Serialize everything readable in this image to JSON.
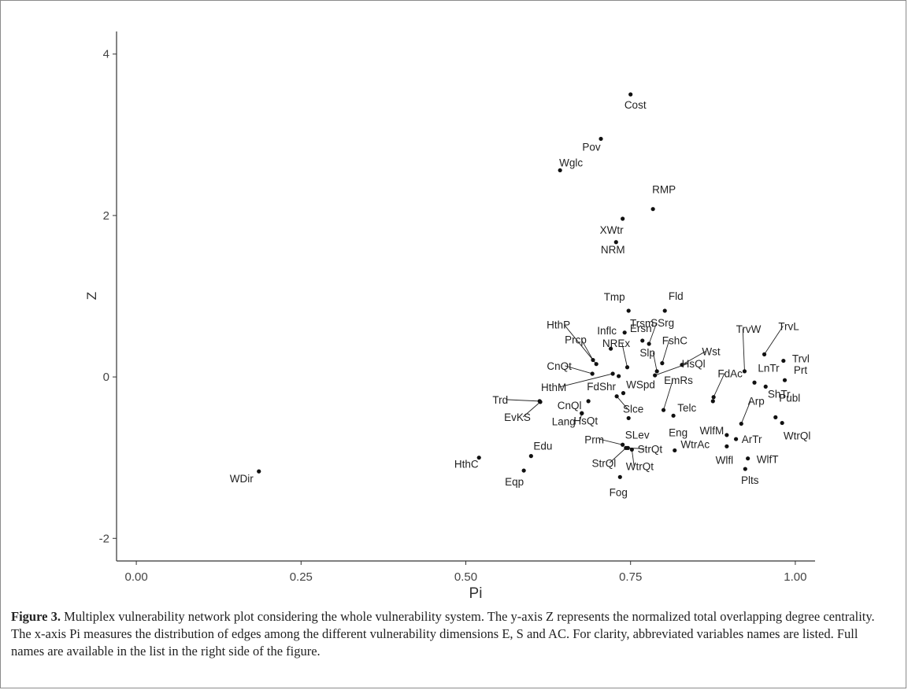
{
  "chart_data": {
    "type": "scatter",
    "xlabel": "Pi",
    "ylabel": "Z",
    "xlim": [
      -0.03,
      1.03
    ],
    "ylim": [
      -2.28,
      4.28
    ],
    "xticks": [
      "0.00",
      "0.25",
      "0.50",
      "0.75",
      "1.00"
    ],
    "xtick_values": [
      0,
      0.25,
      0.5,
      0.75,
      1.0
    ],
    "yticks": [
      "-2",
      "0",
      "2",
      "4"
    ],
    "ytick_values": [
      -2,
      0,
      2,
      4
    ],
    "grid": false,
    "point_color": "#111111",
    "points": [
      {
        "label": "Cost",
        "x": 0.75,
        "y": 3.5
      },
      {
        "label": "Pov",
        "x": 0.705,
        "y": 2.95
      },
      {
        "label": "Wglc",
        "x": 0.643,
        "y": 2.56
      },
      {
        "label": "RMP",
        "x": 0.784,
        "y": 2.08
      },
      {
        "label": "XWtr",
        "x": 0.738,
        "y": 1.96
      },
      {
        "label": "NRM",
        "x": 0.728,
        "y": 1.67
      },
      {
        "label": "Tmp",
        "x": 0.747,
        "y": 0.82
      },
      {
        "label": "Fld",
        "x": 0.802,
        "y": 0.82
      },
      {
        "label": "Trsm",
        "x": 0.741,
        "y": 0.55
      },
      {
        "label": "Inflc",
        "x": 0.72,
        "y": 0.35
      },
      {
        "label": "Ersn",
        "x": 0.768,
        "y": 0.45
      },
      {
        "label": "SSrg",
        "x": 0.778,
        "y": 0.41
      },
      {
        "label": "HthP",
        "x": 0.698,
        "y": 0.16
      },
      {
        "label": "Prcp",
        "x": 0.693,
        "y": 0.21
      },
      {
        "label": "NREx",
        "x": 0.745,
        "y": 0.12
      },
      {
        "label": "FshC",
        "x": 0.798,
        "y": 0.17
      },
      {
        "label": "Wst",
        "x": 0.828,
        "y": 0.15
      },
      {
        "label": "Slp",
        "x": 0.79,
        "y": 0.07
      },
      {
        "label": "HsQl",
        "x": 0.787,
        "y": 0.02
      },
      {
        "label": "CnQt",
        "x": 0.692,
        "y": 0.04
      },
      {
        "label": "HthM",
        "x": 0.723,
        "y": 0.04
      },
      {
        "label": "FdShr",
        "x": 0.732,
        "y": 0.01
      },
      {
        "label": "WSpd",
        "x": 0.739,
        "y": -0.2
      },
      {
        "label": "Trd",
        "x": 0.612,
        "y": -0.3
      },
      {
        "label": "EvKS",
        "x": 0.613,
        "y": -0.31
      },
      {
        "label": "CnQl",
        "x": 0.686,
        "y": -0.3
      },
      {
        "label": "Slce",
        "x": 0.729,
        "y": -0.24
      },
      {
        "label": "HsQt",
        "x": 0.676,
        "y": -0.45
      },
      {
        "label": "Lang",
        "x": 0.676,
        "y": -0.45
      },
      {
        "label": "SLev",
        "x": 0.747,
        "y": -0.51
      },
      {
        "label": "EmRs",
        "x": 0.8,
        "y": -0.41
      },
      {
        "label": "Eng",
        "x": 0.815,
        "y": -0.48
      },
      {
        "label": "Telc",
        "x": 0.875,
        "y": -0.3
      },
      {
        "label": "FdAc",
        "x": 0.876,
        "y": -0.25
      },
      {
        "label": "TrvW",
        "x": 0.923,
        "y": 0.07
      },
      {
        "label": "TrvL",
        "x": 0.953,
        "y": 0.28
      },
      {
        "label": "Trvl",
        "x": 0.982,
        "y": 0.2
      },
      {
        "label": "LnTr",
        "x": 0.938,
        "y": -0.07
      },
      {
        "label": "Prt",
        "x": 0.984,
        "y": -0.04
      },
      {
        "label": "ShTr",
        "x": 0.955,
        "y": -0.12
      },
      {
        "label": "Arp",
        "x": 0.918,
        "y": -0.58
      },
      {
        "label": "Publ",
        "x": 0.97,
        "y": -0.5
      },
      {
        "label": "WtrQl",
        "x": 0.98,
        "y": -0.57
      },
      {
        "label": "WlfM",
        "x": 0.896,
        "y": -0.72
      },
      {
        "label": "ArTr",
        "x": 0.91,
        "y": -0.77
      },
      {
        "label": "Wlfl",
        "x": 0.896,
        "y": -0.86
      },
      {
        "label": "WlfT",
        "x": 0.928,
        "y": -1.01
      },
      {
        "label": "Plts",
        "x": 0.924,
        "y": -1.14
      },
      {
        "label": "Prm",
        "x": 0.738,
        "y": -0.84
      },
      {
        "label": "StrQt",
        "x": 0.746,
        "y": -0.88
      },
      {
        "label": "StrQl",
        "x": 0.743,
        "y": -0.88
      },
      {
        "label": "WtrQt",
        "x": 0.752,
        "y": -0.9
      },
      {
        "label": "WtrAc",
        "x": 0.817,
        "y": -0.91
      },
      {
        "label": "Fog",
        "x": 0.734,
        "y": -1.24
      },
      {
        "label": "Edu",
        "x": 0.599,
        "y": -0.98
      },
      {
        "label": "HthC",
        "x": 0.52,
        "y": -1.0
      },
      {
        "label": "Eqp",
        "x": 0.588,
        "y": -1.16
      },
      {
        "label": "WDir",
        "x": 0.186,
        "y": -1.17
      }
    ]
  },
  "caption": {
    "label": "Figure 3.",
    "text": " Multiplex vulnerability network plot considering the whole vulnerability system. The y-axis Z represents the normalized total overlapping degree centrality. The x-axis Pi measures the distribution of edges among the different vulnerability dimensions E, S and AC. For clarity, abbreviated variables names are listed. Full names are available in the list in the right side of the figure."
  }
}
